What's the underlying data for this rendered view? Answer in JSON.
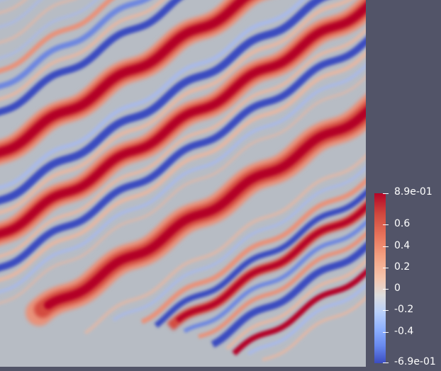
{
  "colorbar": {
    "max_label": "8.9e-01",
    "min_label": "-6.9e-01",
    "ticks": [
      "0.6",
      "0.4",
      "0.2",
      "0",
      "-0.2",
      "-0.4"
    ]
  },
  "colors": {
    "background": "#525468",
    "field_neutral": "#b7bcc4",
    "positive": "#b40426",
    "negative": "#3b4cc0"
  }
}
